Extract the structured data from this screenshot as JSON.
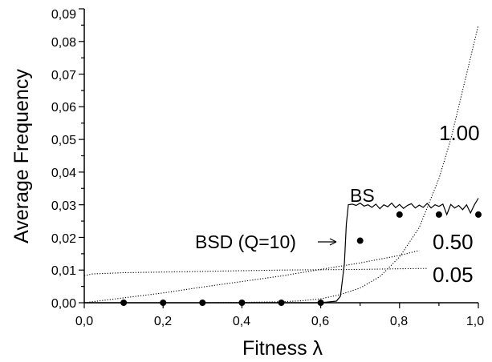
{
  "chart_data": {
    "type": "line",
    "title": "",
    "xlabel": "Fitness λ",
    "ylabel": "Average Frequency",
    "xlim": [
      0.0,
      1.0
    ],
    "ylim": [
      0.0,
      0.09
    ],
    "grid": false,
    "legend": "none",
    "x_ticks": [
      "0,0",
      "0,2",
      "0,4",
      "0,6",
      "0,8",
      "1,0"
    ],
    "y_ticks": [
      "0,00",
      "0,01",
      "0,02",
      "0,03",
      "0,04",
      "0,05",
      "0,06",
      "0,07",
      "0,08",
      "0,09"
    ],
    "series": [
      {
        "name": "BS",
        "style": "solid",
        "x": [
          0.0,
          0.1,
          0.2,
          0.3,
          0.4,
          0.5,
          0.6,
          0.64,
          0.65,
          0.66,
          0.665,
          0.67,
          0.68,
          0.69,
          0.7,
          0.71,
          0.72,
          0.73,
          0.74,
          0.75,
          0.76,
          0.77,
          0.78,
          0.79,
          0.8,
          0.81,
          0.82,
          0.83,
          0.84,
          0.85,
          0.86,
          0.87,
          0.88,
          0.89,
          0.9,
          0.91,
          0.92,
          0.93,
          0.94,
          0.95,
          0.96,
          0.97,
          0.98,
          0.99,
          1.0
        ],
        "y": [
          0.0,
          0.0,
          0.0,
          0.0,
          0.0,
          0.0,
          0.0,
          0.0005,
          0.002,
          0.012,
          0.024,
          0.03,
          0.0302,
          0.0298,
          0.0305,
          0.0296,
          0.03,
          0.0292,
          0.0302,
          0.0288,
          0.03,
          0.0294,
          0.0305,
          0.0291,
          0.0301,
          0.0289,
          0.0298,
          0.0303,
          0.029,
          0.0299,
          0.0292,
          0.0304,
          0.029,
          0.03,
          0.0295,
          0.0302,
          0.027,
          0.0301,
          0.029,
          0.0298,
          0.0285,
          0.03,
          0.0275,
          0.03,
          0.032
        ]
      },
      {
        "name": "BSD (Q=10)",
        "style": "markers",
        "x": [
          0.1,
          0.2,
          0.3,
          0.4,
          0.5,
          0.6,
          0.7,
          0.8,
          0.9,
          1.0
        ],
        "y": [
          0.0,
          0.0,
          0.0,
          0.0,
          0.0,
          0.0,
          0.019,
          0.027,
          0.027,
          0.027
        ]
      },
      {
        "name": "1.00",
        "style": "dotted",
        "x": [
          0.0,
          0.1,
          0.2,
          0.3,
          0.4,
          0.5,
          0.55,
          0.6,
          0.65,
          0.7,
          0.75,
          0.8,
          0.85,
          0.9,
          0.93,
          0.96,
          0.98,
          1.0
        ],
        "y": [
          0.0,
          0.0,
          0.0,
          0.0,
          0.0001,
          0.0003,
          0.0006,
          0.0012,
          0.0025,
          0.0045,
          0.008,
          0.014,
          0.023,
          0.038,
          0.05,
          0.065,
          0.075,
          0.085
        ]
      },
      {
        "name": "0.50",
        "style": "dotted",
        "x": [
          0.0,
          0.1,
          0.2,
          0.3,
          0.4,
          0.5,
          0.6,
          0.7,
          0.8,
          0.85
        ],
        "y": [
          0.0,
          0.0015,
          0.003,
          0.0048,
          0.0065,
          0.0082,
          0.0102,
          0.0122,
          0.0145,
          0.016
        ]
      },
      {
        "name": "0.05",
        "style": "dotted",
        "x": [
          0.0,
          0.02,
          0.1,
          0.2,
          0.3,
          0.4,
          0.5,
          0.6,
          0.7,
          0.8,
          0.87
        ],
        "y": [
          0.0083,
          0.0088,
          0.0092,
          0.0094,
          0.0096,
          0.0098,
          0.01,
          0.0101,
          0.0102,
          0.0104,
          0.0105
        ]
      }
    ],
    "annotations": [
      "BS",
      "BSD (Q=10)",
      "1.00",
      "0.50",
      "0.05"
    ]
  }
}
